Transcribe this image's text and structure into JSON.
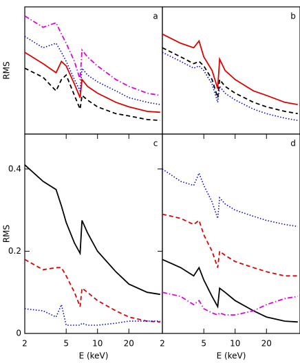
{
  "chart_data": [
    {
      "type": "line",
      "panel_label": "a",
      "ylabel": "RMS",
      "xlog": true,
      "xlim": [
        2,
        42
      ],
      "ylim": [
        0,
        0.28
      ],
      "x": [
        2,
        3,
        4,
        4.5,
        5,
        6,
        6.8,
        7.1,
        8,
        10,
        15,
        20,
        30,
        40
      ],
      "series": [
        {
          "color": "#e000e0",
          "dash": "dashdot",
          "values": [
            0.26,
            0.235,
            0.245,
            0.22,
            0.2,
            0.16,
            0.12,
            0.185,
            0.17,
            0.15,
            0.12,
            0.105,
            0.09,
            0.085
          ]
        },
        {
          "color": "#0000dd",
          "dash": "dotted",
          "values": [
            0.215,
            0.19,
            0.2,
            0.18,
            0.16,
            0.12,
            0.095,
            0.145,
            0.13,
            0.115,
            0.095,
            0.08,
            0.07,
            0.065
          ]
        },
        {
          "color": "#e00000",
          "dash": "solid",
          "values": [
            0.18,
            0.155,
            0.135,
            0.16,
            0.15,
            0.11,
            0.08,
            0.12,
            0.105,
            0.09,
            0.07,
            0.06,
            0.05,
            0.048
          ]
        },
        {
          "color": "#000000",
          "dash": "dashed",
          "values": [
            0.145,
            0.125,
            0.095,
            0.12,
            0.13,
            0.085,
            0.055,
            0.085,
            0.075,
            0.06,
            0.045,
            0.04,
            0.032,
            0.03
          ]
        }
      ]
    },
    {
      "type": "line",
      "panel_label": "b",
      "xlog": true,
      "xlim": [
        2,
        42
      ],
      "ylim": [
        0,
        0.28
      ],
      "x": [
        2,
        3,
        4,
        4.5,
        5,
        6,
        6.8,
        7.1,
        8,
        10,
        15,
        20,
        30,
        40
      ],
      "series": [
        {
          "color": "#e00000",
          "dash": "solid",
          "values": [
            0.22,
            0.2,
            0.19,
            0.205,
            0.17,
            0.14,
            0.1,
            0.165,
            0.14,
            0.12,
            0.095,
            0.085,
            0.07,
            0.065
          ]
        },
        {
          "color": "#000000",
          "dash": "dashed",
          "values": [
            0.19,
            0.17,
            0.155,
            0.16,
            0.15,
            0.12,
            0.08,
            0.12,
            0.105,
            0.09,
            0.07,
            0.06,
            0.05,
            0.045
          ]
        },
        {
          "color": "#0000dd",
          "dash": "dotted",
          "values": [
            0.18,
            0.16,
            0.145,
            0.15,
            0.14,
            0.11,
            0.07,
            0.105,
            0.09,
            0.075,
            0.055,
            0.045,
            0.035,
            0.03
          ]
        }
      ]
    },
    {
      "type": "line",
      "panel_label": "c",
      "ylabel": "RMS",
      "xlabel": "E (keV)",
      "xlog": true,
      "xlim": [
        2,
        42
      ],
      "ylim": [
        0,
        0.485
      ],
      "xticks": [
        2,
        5,
        10,
        20
      ],
      "yticks": [
        0,
        0.2,
        0.4
      ],
      "x": [
        2,
        3,
        4,
        4.5,
        5,
        6,
        6.8,
        7.1,
        8,
        10,
        15,
        20,
        30,
        40
      ],
      "series": [
        {
          "color": "#000000",
          "dash": "solid",
          "values": [
            0.41,
            0.37,
            0.35,
            0.31,
            0.27,
            0.22,
            0.195,
            0.275,
            0.245,
            0.2,
            0.15,
            0.12,
            0.1,
            0.095
          ]
        },
        {
          "color": "#e00000",
          "dash": "dashed",
          "values": [
            0.18,
            0.155,
            0.16,
            0.16,
            0.14,
            0.1,
            0.065,
            0.11,
            0.1,
            0.08,
            0.055,
            0.04,
            0.03,
            0.028
          ]
        },
        {
          "color": "#0000dd",
          "dash": "dotted",
          "values": [
            0.06,
            0.055,
            0.04,
            0.07,
            0.02,
            0.02,
            0.02,
            0.025,
            0.02,
            0.02,
            0.025,
            0.03,
            0.03,
            0.03
          ]
        }
      ]
    },
    {
      "type": "line",
      "panel_label": "d",
      "xlabel": "E (keV)",
      "xlog": true,
      "xlim": [
        2,
        42
      ],
      "ylim": [
        0,
        0.485
      ],
      "xticks": [
        2,
        5,
        10,
        20
      ],
      "x": [
        2,
        3,
        4,
        4.5,
        5,
        6,
        6.8,
        7.1,
        8,
        10,
        15,
        20,
        30,
        40
      ],
      "series": [
        {
          "color": "#0000dd",
          "dash": "dotted",
          "values": [
            0.4,
            0.37,
            0.36,
            0.39,
            0.36,
            0.32,
            0.28,
            0.33,
            0.315,
            0.3,
            0.285,
            0.275,
            0.265,
            0.26
          ]
        },
        {
          "color": "#e00000",
          "dash": "dashed",
          "values": [
            0.29,
            0.28,
            0.265,
            0.275,
            0.24,
            0.2,
            0.16,
            0.2,
            0.19,
            0.175,
            0.16,
            0.15,
            0.14,
            0.14
          ]
        },
        {
          "color": "#000000",
          "dash": "solid",
          "values": [
            0.18,
            0.16,
            0.14,
            0.16,
            0.13,
            0.09,
            0.065,
            0.11,
            0.1,
            0.08,
            0.055,
            0.04,
            0.03,
            0.028
          ]
        },
        {
          "color": "#e000e0",
          "dash": "dashdot",
          "values": [
            0.1,
            0.09,
            0.07,
            0.08,
            0.06,
            0.05,
            0.045,
            0.05,
            0.045,
            0.045,
            0.055,
            0.07,
            0.085,
            0.09
          ]
        }
      ]
    }
  ]
}
